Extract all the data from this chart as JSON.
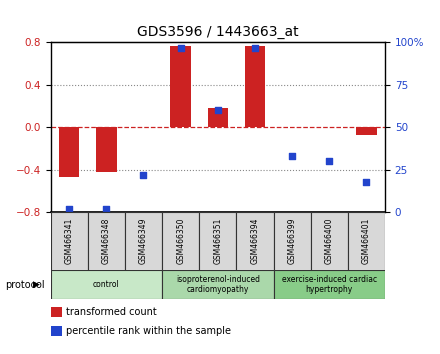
{
  "title": "GDS3596 / 1443663_at",
  "samples": [
    "GSM466341",
    "GSM466348",
    "GSM466349",
    "GSM466350",
    "GSM466351",
    "GSM466394",
    "GSM466399",
    "GSM466400",
    "GSM466401"
  ],
  "transformed_counts": [
    -0.47,
    -0.42,
    0.0,
    0.77,
    0.18,
    0.77,
    0.0,
    0.0,
    -0.07
  ],
  "percentile_ranks": [
    2,
    2,
    22,
    97,
    60,
    97,
    33,
    30,
    18
  ],
  "ylim_left": [
    -0.8,
    0.8
  ],
  "ylim_right": [
    0,
    100
  ],
  "yticks_left": [
    -0.8,
    -0.4,
    0.0,
    0.4,
    0.8
  ],
  "yticks_right": [
    0,
    25,
    50,
    75,
    100
  ],
  "bar_color": "#cc2222",
  "dot_color": "#2244cc",
  "groups": [
    {
      "label": "control",
      "start": 0,
      "end": 2,
      "color": "#c8e8c8"
    },
    {
      "label": "isoproterenol-induced\ncardiomyopathy",
      "start": 3,
      "end": 5,
      "color": "#aad8aa"
    },
    {
      "label": "exercise-induced cardiac\nhypertrophy",
      "start": 6,
      "end": 8,
      "color": "#88cc88"
    }
  ],
  "legend_items": [
    {
      "label": "transformed count",
      "color": "#cc2222"
    },
    {
      "label": "percentile rank within the sample",
      "color": "#2244cc"
    }
  ],
  "background_color": "#ffffff",
  "grid_color": "#888888",
  "zero_line_color": "#cc2222",
  "protocol_label": "protocol"
}
